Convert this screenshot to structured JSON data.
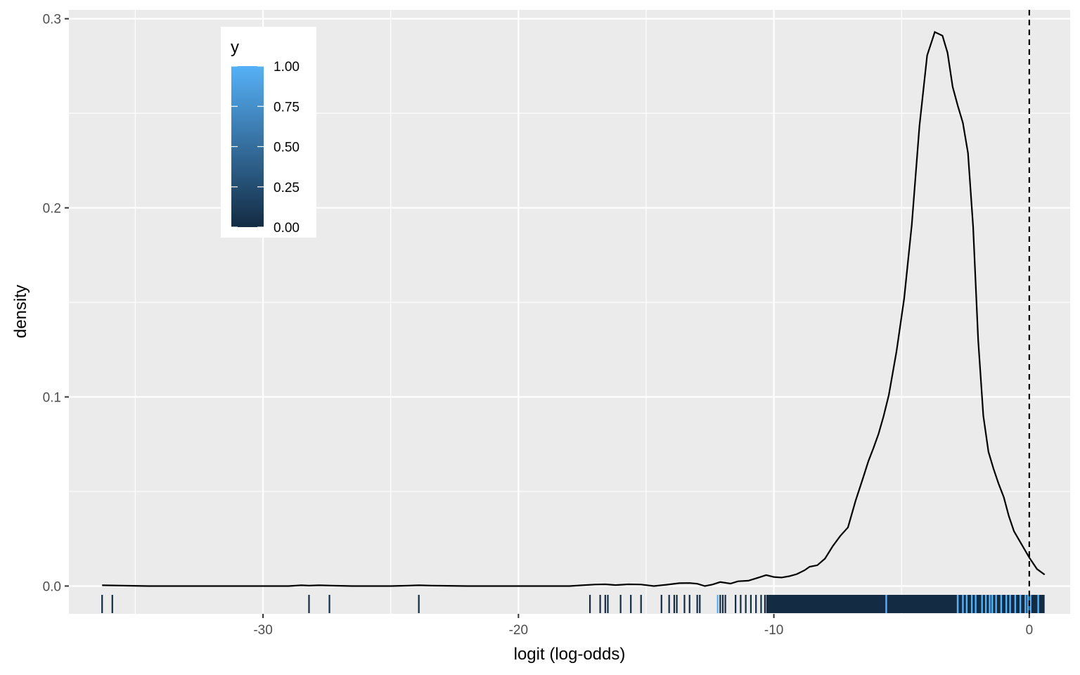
{
  "chart_data": {
    "type": "line",
    "title": "",
    "xlabel": "logit (log-odds)",
    "ylabel": "density",
    "xlim": [
      -37.6,
      1.6
    ],
    "ylim": [
      -0.0147,
      0.3047
    ],
    "x_ticks": [
      -30,
      -20,
      -10,
      0
    ],
    "x_tick_labels": [
      "-30",
      "-20",
      "-10",
      "0"
    ],
    "y_ticks": [
      0.0,
      0.1,
      0.2,
      0.3
    ],
    "y_tick_labels": [
      "0.0",
      "0.1",
      "0.2",
      "0.3"
    ],
    "grid": true,
    "background": "#ebebeb",
    "grid_color": "#ffffff",
    "series": [
      {
        "type": "density-line",
        "color": "#000000",
        "x": [
          -36.3,
          -35.5,
          -34.5,
          -33,
          -31,
          -29,
          -28.5,
          -28.2,
          -27.8,
          -27.3,
          -26.5,
          -25,
          -24.3,
          -23.9,
          -23.4,
          -22,
          -20,
          -18,
          -17.5,
          -17,
          -16.6,
          -16.2,
          -15.7,
          -15.2,
          -14.7,
          -14.2,
          -13.7,
          -13.3,
          -13,
          -12.7,
          -12.4,
          -12.1,
          -11.7,
          -11.4,
          -11,
          -10.6,
          -10.3,
          -10,
          -9.7,
          -9.4,
          -9.1,
          -8.8,
          -8.6,
          -8.3,
          -8.0,
          -7.7,
          -7.4,
          -7.1,
          -6.8,
          -6.5,
          -6.3,
          -6.1,
          -5.9,
          -5.7,
          -5.5,
          -5.2,
          -4.9,
          -4.6,
          -4.3,
          -4.0,
          -3.7,
          -3.4,
          -3.2,
          -3.0,
          -2.8,
          -2.6,
          -2.4,
          -2.2,
          -2.0,
          -1.8,
          -1.6,
          -1.4,
          -1.2,
          -1.0,
          -0.8,
          -0.6,
          -0.3,
          0.0,
          0.3,
          0.6
        ],
        "y": [
          0.0004,
          0.0002,
          0.0,
          0.0,
          0.0,
          0.0,
          0.0004,
          0.0002,
          0.0004,
          0.0002,
          0.0,
          0.0,
          0.0002,
          0.0004,
          0.0002,
          0.0,
          0.0,
          0.0,
          0.0004,
          0.0008,
          0.0009,
          0.0005,
          0.0009,
          0.0008,
          0.0,
          0.0007,
          0.0015,
          0.0016,
          0.0012,
          0.0,
          0.0008,
          0.0021,
          0.0013,
          0.0025,
          0.0028,
          0.0045,
          0.0058,
          0.0048,
          0.0045,
          0.0052,
          0.0063,
          0.0083,
          0.0102,
          0.011,
          0.0145,
          0.021,
          0.0265,
          0.031,
          0.0452,
          0.0576,
          0.066,
          0.073,
          0.0806,
          0.09,
          0.101,
          0.124,
          0.152,
          0.1912,
          0.2434,
          0.2806,
          0.293,
          0.291,
          0.282,
          0.264,
          0.254,
          0.245,
          0.229,
          0.19,
          0.13,
          0.09,
          0.071,
          0.062,
          0.054,
          0.047,
          0.037,
          0.029,
          0.022,
          0.015,
          0.009,
          0.006
        ]
      },
      {
        "type": "vline",
        "x": 0,
        "linestyle": "dashed",
        "color": "#000000"
      }
    ],
    "rug": {
      "y_level": "below-zero",
      "sparse": [
        {
          "x": -36.3,
          "y": 0
        },
        {
          "x": -35.9,
          "y": 0
        },
        {
          "x": -28.2,
          "y": 0
        },
        {
          "x": -27.4,
          "y": 0
        },
        {
          "x": -23.9,
          "y": 0
        },
        {
          "x": -17.2,
          "y": 0
        },
        {
          "x": -16.8,
          "y": 0
        },
        {
          "x": -16.6,
          "y": 0
        },
        {
          "x": -16.5,
          "y": 0
        },
        {
          "x": -16.0,
          "y": 0
        },
        {
          "x": -15.6,
          "y": 0
        },
        {
          "x": -15.2,
          "y": 0
        },
        {
          "x": -14.4,
          "y": 0
        },
        {
          "x": -14.1,
          "y": 0
        },
        {
          "x": -13.9,
          "y": 0
        },
        {
          "x": -13.8,
          "y": 0
        },
        {
          "x": -13.5,
          "y": 0
        },
        {
          "x": -13.3,
          "y": 0
        },
        {
          "x": -13.0,
          "y": 0
        },
        {
          "x": -12.9,
          "y": 0
        },
        {
          "x": -12.2,
          "y": 1
        },
        {
          "x": -12.1,
          "y": 0
        },
        {
          "x": -12.0,
          "y": 0
        },
        {
          "x": -11.9,
          "y": 0
        },
        {
          "x": -11.5,
          "y": 0
        },
        {
          "x": -11.3,
          "y": 0
        },
        {
          "x": -11.1,
          "y": 0
        },
        {
          "x": -10.9,
          "y": 0
        },
        {
          "x": -10.7,
          "y": 0
        },
        {
          "x": -10.5,
          "y": 0
        },
        {
          "x": -10.35,
          "y": 0
        }
      ],
      "dense_bands": [
        {
          "x_start": -10.3,
          "x_end": -2.85,
          "y": 0
        },
        {
          "x_start": -2.85,
          "x_end": 0.6,
          "y": 0
        }
      ],
      "light_ticks": [
        -5.6,
        -2.8,
        -2.6,
        -2.45,
        -2.25,
        -2.1,
        -1.85,
        -1.7,
        -1.55,
        -1.45,
        -1.3,
        -1.1,
        -0.9,
        -0.75,
        -0.55,
        -0.35,
        -0.15,
        -0.05,
        0.05,
        0.35
      ]
    },
    "legend": {
      "title": "y",
      "type": "colorbar",
      "placement": "top-left",
      "low_color": "#132b43",
      "high_color": "#56b1f7",
      "breaks": [
        1.0,
        0.75,
        0.5,
        0.25,
        0.0
      ],
      "labels": [
        "1.00",
        "0.75",
        "0.50",
        "0.25",
        "0.00"
      ]
    }
  }
}
